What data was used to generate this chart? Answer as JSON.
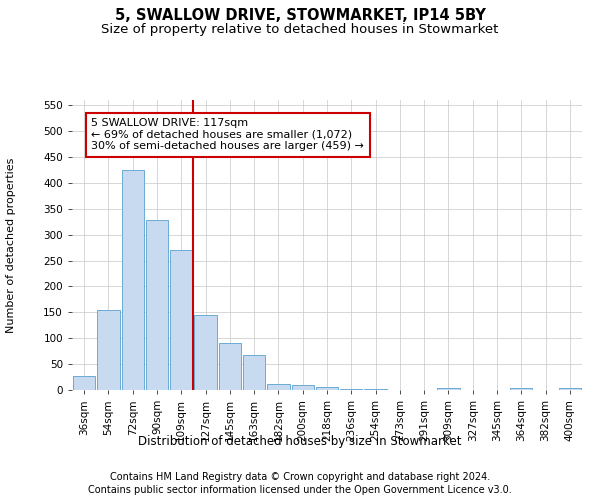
{
  "title1": "5, SWALLOW DRIVE, STOWMARKET, IP14 5BY",
  "title2": "Size of property relative to detached houses in Stowmarket",
  "xlabel": "Distribution of detached houses by size in Stowmarket",
  "ylabel": "Number of detached properties",
  "categories": [
    "36sqm",
    "54sqm",
    "72sqm",
    "90sqm",
    "109sqm",
    "127sqm",
    "145sqm",
    "163sqm",
    "182sqm",
    "200sqm",
    "218sqm",
    "236sqm",
    "254sqm",
    "273sqm",
    "291sqm",
    "309sqm",
    "327sqm",
    "345sqm",
    "364sqm",
    "382sqm",
    "400sqm"
  ],
  "values": [
    27,
    155,
    425,
    328,
    270,
    145,
    90,
    68,
    12,
    10,
    5,
    2,
    1,
    0,
    0,
    4,
    0,
    0,
    3,
    0,
    3
  ],
  "bar_color": "#c8daf0",
  "bar_edge_color": "#6aaad4",
  "bar_linewidth": 0.7,
  "vline_index": 5,
  "vline_color": "#cc0000",
  "annotation_line1": "5 SWALLOW DRIVE: 117sqm",
  "annotation_line2": "← 69% of detached houses are smaller (1,072)",
  "annotation_line3": "30% of semi-detached houses are larger (459) →",
  "annotation_box_color": "#ffffff",
  "annotation_box_edge": "#cc0000",
  "ylim": [
    0,
    560
  ],
  "yticks": [
    0,
    50,
    100,
    150,
    200,
    250,
    300,
    350,
    400,
    450,
    500,
    550
  ],
  "footnote1": "Contains HM Land Registry data © Crown copyright and database right 2024.",
  "footnote2": "Contains public sector information licensed under the Open Government Licence v3.0.",
  "bg_color": "#ffffff",
  "grid_color": "#c8c8c8",
  "title1_fontsize": 10.5,
  "title2_fontsize": 9.5,
  "xlabel_fontsize": 8.5,
  "ylabel_fontsize": 8,
  "footnote_fontsize": 7,
  "tick_fontsize": 7.5,
  "annot_fontsize": 8
}
